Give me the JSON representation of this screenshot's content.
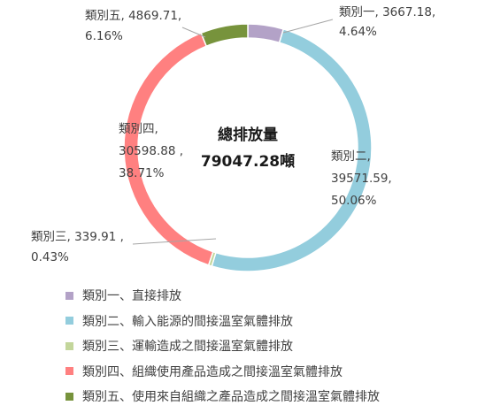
{
  "chart_data": {
    "type": "pie",
    "center_title": "總排放量",
    "center_total": "79047.28噸",
    "categories": [
      "類別一",
      "類別二",
      "類別三",
      "類別四",
      "類別五"
    ],
    "values": [
      3667.18,
      39571.59,
      339.91,
      30598.88,
      4869.71
    ],
    "percentages": [
      4.64,
      50.06,
      0.43,
      38.71,
      6.16
    ],
    "colors": [
      "#b3a2c7",
      "#93cddd",
      "#c3d69b",
      "#ff8080",
      "#77933c"
    ],
    "data_labels": [
      [
        "類別一, 3667.18,",
        "4.64%"
      ],
      [
        "類別二,",
        "39571.59,",
        "50.06%"
      ],
      [
        "類別三, 339.91 ,",
        "0.43%"
      ],
      [
        "類別四,",
        "30598.88 ,",
        "38.71%"
      ],
      [
        "類別五, 4869.71,",
        "6.16%"
      ]
    ],
    "legend": [
      "類別一、直接排放",
      "類別二、輸入能源的間接溫室氣體排放",
      "類別三、運輸造成之間接溫室氣體排放",
      "類別四、組織使用產品造成之間接溫室氣體排放",
      "類別五、使用來自組織之產品造成之間接溫室氣體排放"
    ],
    "legend_position": "bottom"
  }
}
